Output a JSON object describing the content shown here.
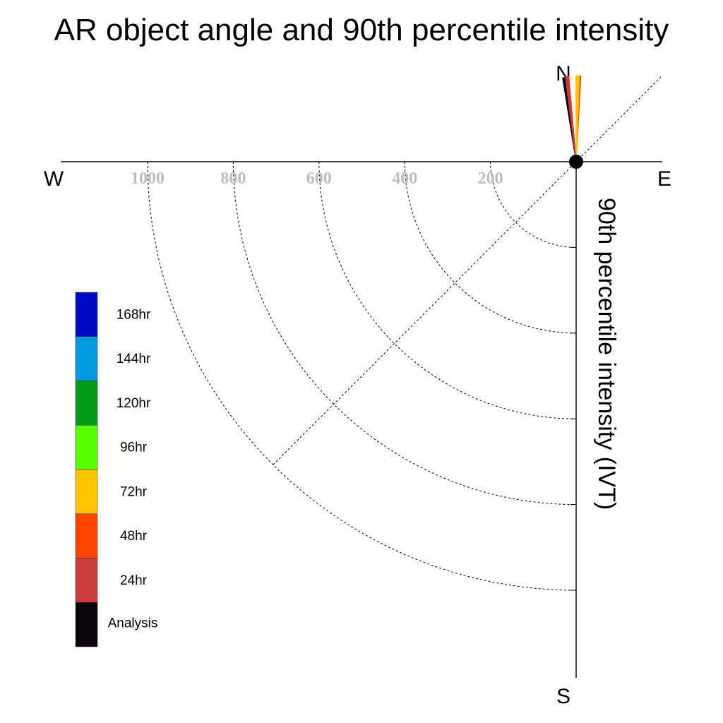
{
  "chart_data": {
    "type": "polar-bar",
    "title": "AR object angle and 90th percentile intensity",
    "compass": {
      "north": "N",
      "south": "S",
      "east": "E",
      "west": "W"
    },
    "radial_axis_label": "90th percentile intensity (IVT)",
    "radial_ticks": [
      {
        "value": 200,
        "label": "200"
      },
      {
        "value": 400,
        "label": "400"
      },
      {
        "value": 600,
        "label": "600"
      },
      {
        "value": 800,
        "label": "800"
      },
      {
        "value": 1000,
        "label": "1000"
      }
    ],
    "radial_lim": [
      0,
      1000
    ],
    "series": [
      {
        "name": "Analysis",
        "color": "#0c020c",
        "angle_deg": 352,
        "ivt": 198
      },
      {
        "name": "24hr",
        "color": "#cc3b3b",
        "angle_deg": 354,
        "ivt": 200
      },
      {
        "name": "48hr",
        "color": "#ff4400",
        "angle_deg": 2,
        "ivt": 200
      },
      {
        "name": "72hr",
        "color": "#ffc600",
        "angle_deg": 1,
        "ivt": 200
      }
    ],
    "legend": [
      {
        "label": "168hr",
        "color": "#0009c4"
      },
      {
        "label": "144hr",
        "color": "#009ade"
      },
      {
        "label": "120hr",
        "color": "#009a17"
      },
      {
        "label": "96hr",
        "color": "#58ff00"
      },
      {
        "label": "72hr",
        "color": "#ffc600"
      },
      {
        "label": "48hr",
        "color": "#ff4400"
      },
      {
        "label": "24hr",
        "color": "#cc3b3b"
      },
      {
        "label": "Analysis",
        "color": "#0c020c"
      }
    ],
    "legend_position": "left"
  }
}
